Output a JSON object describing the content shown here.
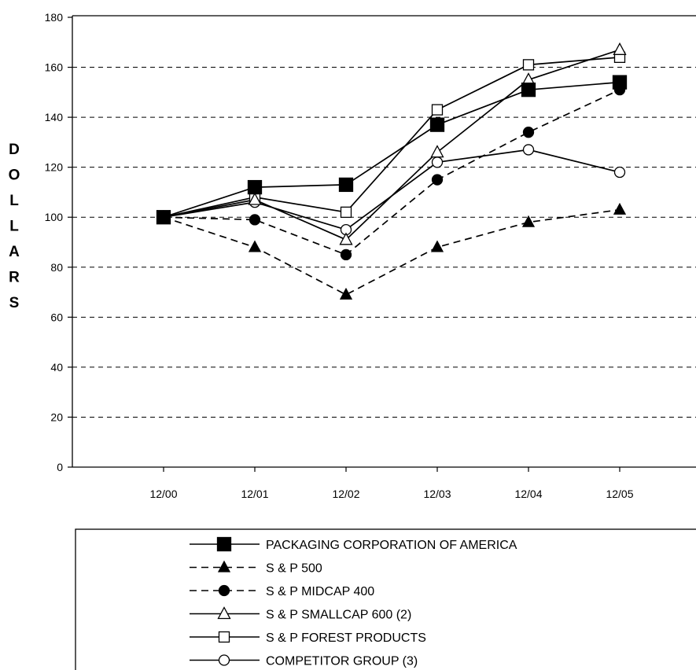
{
  "chart_data": {
    "type": "line",
    "categories": [
      "12/00",
      "12/01",
      "12/02",
      "12/03",
      "12/04",
      "12/05"
    ],
    "ylabel": "DOLLARS",
    "xlabel": "",
    "title": "",
    "ylim": [
      0,
      180
    ],
    "yticks": [
      0,
      20,
      40,
      60,
      80,
      100,
      120,
      140,
      160,
      180
    ],
    "grid": "horizontal-dashed",
    "legend_position": "bottom",
    "series": [
      {
        "name": "PACKAGING CORPORATION OF AMERICA",
        "values": [
          100,
          112,
          113,
          137,
          151,
          154
        ],
        "line": "solid",
        "marker": "filled-square"
      },
      {
        "name": "S & P 500",
        "values": [
          100,
          88,
          69,
          88,
          98,
          103
        ],
        "line": "dashed",
        "marker": "filled-triangle"
      },
      {
        "name": "S & P MIDCAP 400",
        "values": [
          100,
          99,
          85,
          115,
          134,
          151
        ],
        "line": "dashed",
        "marker": "filled-circle"
      },
      {
        "name": "S & P SMALLCAP 600 (2)",
        "values": [
          100,
          107,
          91,
          126,
          155,
          167
        ],
        "line": "solid",
        "marker": "open-triangle"
      },
      {
        "name": "S & P FOREST PRODUCTS",
        "values": [
          100,
          108,
          102,
          143,
          161,
          164
        ],
        "line": "solid",
        "marker": "open-square"
      },
      {
        "name": "COMPETITOR GROUP (3)",
        "values": [
          100,
          106,
          95,
          122,
          127,
          118
        ],
        "line": "solid",
        "marker": "open-circle"
      }
    ]
  }
}
